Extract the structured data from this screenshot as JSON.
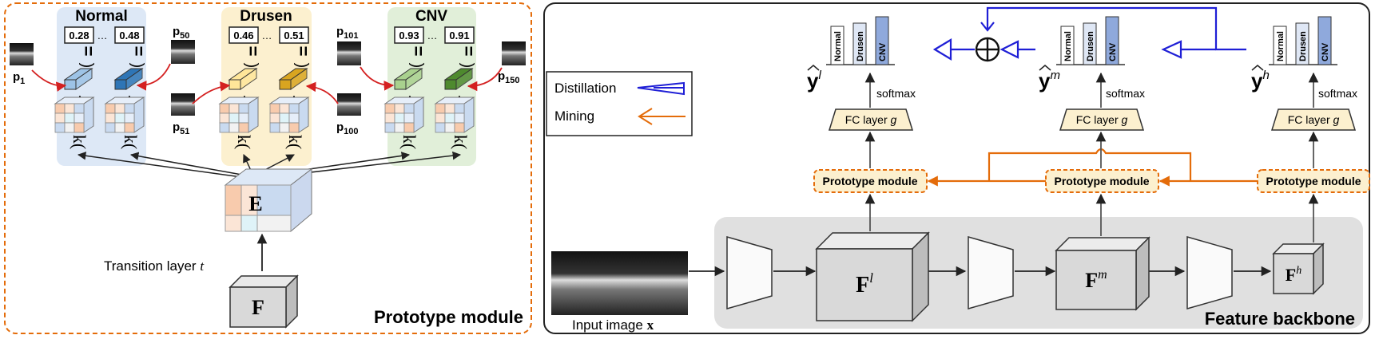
{
  "left_panel": {
    "title": "Prototype module",
    "transition_label": "Transition layer ",
    "transition_var": "t",
    "input_feature": "F",
    "embedding": "E",
    "kappa": "k(",
    "eq_sign": "=",
    "dots": "…",
    "classes": [
      {
        "name": "Normal",
        "v1": "0.28",
        "v2": "0.48",
        "color": "#dde8f6",
        "cube1": "#9dc3e6",
        "cube2": "#2e75b6"
      },
      {
        "name": "Drusen",
        "v1": "0.46",
        "v2": "0.51",
        "color": "#fcf0cf",
        "cube1": "#ffe699",
        "cube2": "#d9a520"
      },
      {
        "name": "CNV",
        "v1": "0.93",
        "v2": "0.91",
        "color": "#e1efd9",
        "cube1": "#a9d18e",
        "cube2": "#4e8a2e"
      }
    ],
    "prototypes": [
      {
        "label": "p",
        "sub": "1"
      },
      {
        "label": "p",
        "sub": "50"
      },
      {
        "label": "p",
        "sub": "51"
      },
      {
        "label": "p",
        "sub": "100"
      },
      {
        "label": "p",
        "sub": "101"
      },
      {
        "label": "p",
        "sub": "150"
      }
    ]
  },
  "right_panel": {
    "title": "Feature backbone",
    "input_label": "Input image ",
    "input_var": "x",
    "legend": {
      "distillation": "Distillation",
      "mining": "Mining"
    },
    "prototype_module": "Prototype module",
    "fc_layer": "FC layer ",
    "fc_var": "g",
    "softmax": "softmax",
    "bar_labels": [
      "Normal",
      "Drusen",
      "CNV"
    ],
    "features": [
      {
        "name": "F",
        "sup": "l"
      },
      {
        "name": "F",
        "sup": "m"
      },
      {
        "name": "F",
        "sup": "h"
      }
    ],
    "outputs": [
      {
        "name": "y",
        "sup": "l"
      },
      {
        "name": "y",
        "sup": "m"
      },
      {
        "name": "y",
        "sup": "h"
      }
    ],
    "oplus": "⊕"
  },
  "colors": {
    "orange": "#e46c0a",
    "blue": "#1f1fd6",
    "red": "#d42020",
    "gray": "#d9d9d9"
  }
}
